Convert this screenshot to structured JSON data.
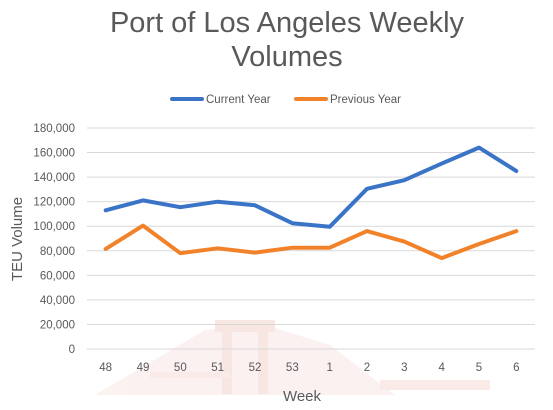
{
  "colors": {
    "current_year": "#3a74c7",
    "previous_year": "#f2822a",
    "text": "#595959",
    "grid": "#d9d9d9",
    "watermark": "#f7e2df"
  },
  "chart_data": {
    "type": "line",
    "title_lines": [
      "Port of Los Angeles Weekly",
      "Volumes"
    ],
    "xlabel": "Week",
    "ylabel": "TEU Volume",
    "categories": [
      "48",
      "49",
      "50",
      "51",
      "52",
      "53",
      "1",
      "2",
      "3",
      "4",
      "5",
      "6"
    ],
    "ylim": [
      0,
      180000
    ],
    "yticks": [
      0,
      20000,
      40000,
      60000,
      80000,
      100000,
      120000,
      140000,
      160000,
      180000
    ],
    "ytick_labels": [
      "0",
      "20,000",
      "40,000",
      "60,000",
      "80,000",
      "100,000",
      "120,000",
      "140,000",
      "160,000",
      "180,000"
    ],
    "grid": true,
    "legend_position": "top",
    "series": [
      {
        "name": "Current Year",
        "color": "#3a74c7",
        "values": [
          113000,
          121000,
          115500,
          120000,
          117000,
          102500,
          99500,
          130500,
          137500,
          151000,
          164000,
          145000
        ]
      },
      {
        "name": "Previous Year",
        "color": "#f2822a",
        "values": [
          81500,
          100500,
          78000,
          82000,
          78500,
          82500,
          82500,
          96000,
          87500,
          74000,
          85500,
          96000
        ]
      }
    ]
  }
}
